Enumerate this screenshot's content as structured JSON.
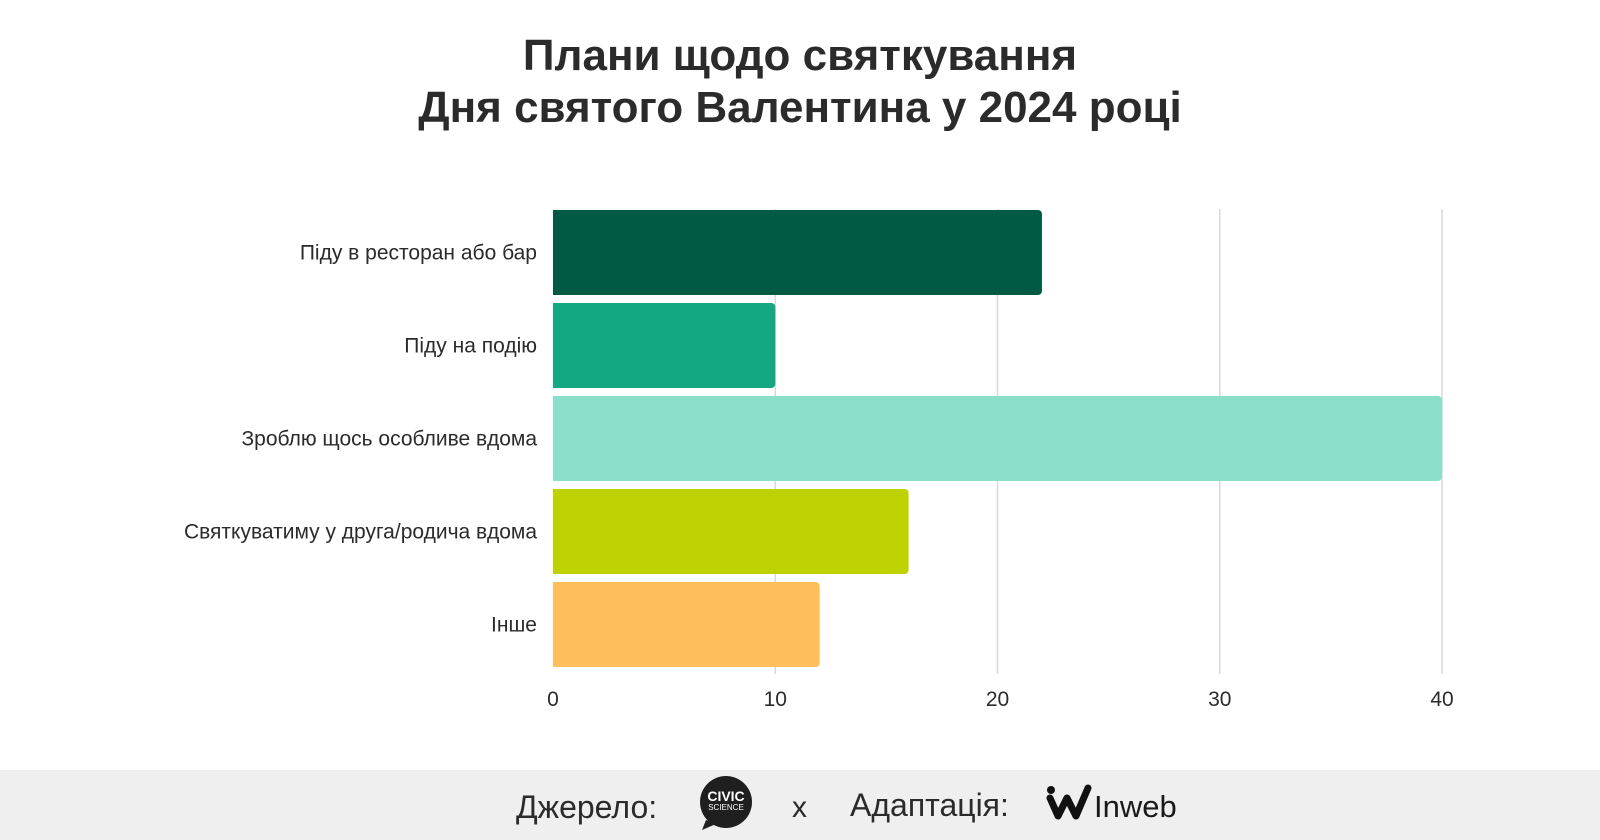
{
  "title": {
    "line1": "Плани щодо святкування",
    "line2": "Дня святого Валентина у 2024 році"
  },
  "chart_data": {
    "type": "bar",
    "orientation": "horizontal",
    "categories": [
      "Піду в ресторан або бар",
      "Піду на подію",
      "Зроблю щось особливе вдома",
      "Святкуватиму у друга/родича вдома",
      "Інше"
    ],
    "values": [
      22,
      10,
      40,
      16,
      12
    ],
    "colors": [
      "#025944",
      "#14a882",
      "#8adeca",
      "#bdd200",
      "#ffbe5c"
    ],
    "xlim": [
      0,
      40
    ],
    "xticks": [
      0,
      10,
      20,
      30,
      40
    ],
    "grid": true
  },
  "footer": {
    "source_label": "Джерело:",
    "source_logo_line1": "CIVIC",
    "source_logo_line2": "SCIENCE",
    "separator": "x",
    "adaptation_label": "Адаптація:",
    "adaptation_brand": "Inweb"
  }
}
